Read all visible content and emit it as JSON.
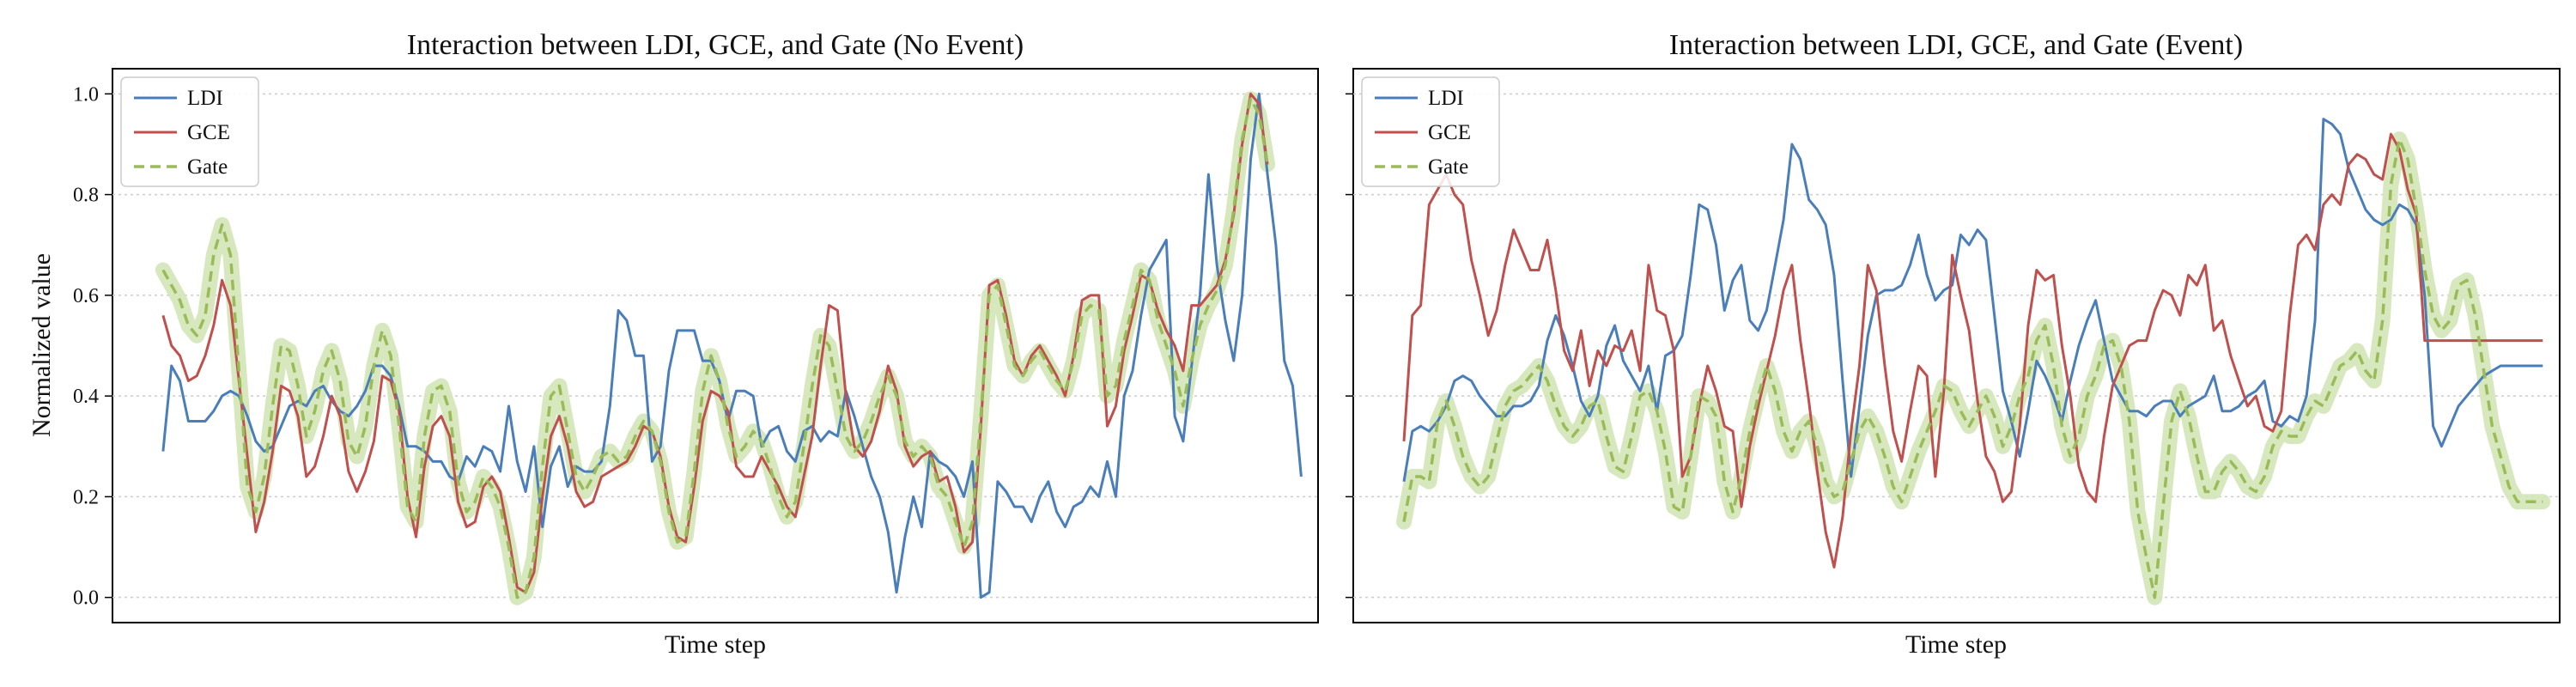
{
  "colors": {
    "ldi": "#4a7ebb",
    "gce": "#c0504d",
    "gate": "#9bbb59",
    "gate_band": "#d3e6b8",
    "grid": "#cccccc"
  },
  "chart_data": [
    {
      "type": "line",
      "title": "Interaction between LDI, GCE, and Gate (No Event)",
      "xlabel": "Time step",
      "ylabel": "Normalized value",
      "ylim": [
        -0.05,
        1.05
      ],
      "xlim": [
        -6,
        137
      ],
      "yticks": [
        "0.0",
        "0.2",
        "0.4",
        "0.6",
        "0.8",
        "1.0"
      ],
      "grid": "y-dotted",
      "legend": "top-left",
      "series": [
        {
          "name": "LDI",
          "values": [
            0.29,
            0.46,
            0.43,
            0.35,
            0.35,
            0.35,
            0.37,
            0.4,
            0.41,
            0.4,
            0.36,
            0.31,
            0.29,
            0.3,
            0.34,
            0.38,
            0.39,
            0.38,
            0.41,
            0.42,
            0.39,
            0.37,
            0.36,
            0.38,
            0.41,
            0.46,
            0.46,
            0.44,
            0.38,
            0.3,
            0.3,
            0.29,
            0.27,
            0.27,
            0.24,
            0.23,
            0.28,
            0.26,
            0.3,
            0.29,
            0.25,
            0.38,
            0.27,
            0.21,
            0.3,
            0.14,
            0.26,
            0.3,
            0.22,
            0.26,
            0.25,
            0.25,
            0.27,
            0.38,
            0.57,
            0.55,
            0.48,
            0.48,
            0.27,
            0.3,
            0.45,
            0.53,
            0.53,
            0.53,
            0.47,
            0.47,
            0.43,
            0.35,
            0.41,
            0.41,
            0.4,
            0.3,
            0.33,
            0.34,
            0.29,
            0.27,
            0.33,
            0.34,
            0.31,
            0.33,
            0.32,
            0.41,
            0.36,
            0.3,
            0.24,
            0.2,
            0.13,
            0.01,
            0.12,
            0.2,
            0.14,
            0.29,
            0.27,
            0.26,
            0.24,
            0.2,
            0.27,
            0.0,
            0.01,
            0.23,
            0.21,
            0.18,
            0.18,
            0.15,
            0.2,
            0.23,
            0.17,
            0.14,
            0.18,
            0.19,
            0.22,
            0.2,
            0.27,
            0.2,
            0.4,
            0.45,
            0.56,
            0.65,
            0.68,
            0.71,
            0.36,
            0.31,
            0.46,
            0.6,
            0.84,
            0.66,
            0.55,
            0.47,
            0.6,
            0.87,
            1.0,
            0.84,
            0.7,
            0.47,
            0.42,
            0.24
          ]
        },
        {
          "name": "GCE",
          "values": [
            0.56,
            0.5,
            0.48,
            0.43,
            0.44,
            0.48,
            0.54,
            0.63,
            0.58,
            0.43,
            0.28,
            0.13,
            0.19,
            0.29,
            0.42,
            0.41,
            0.36,
            0.24,
            0.26,
            0.32,
            0.4,
            0.36,
            0.25,
            0.21,
            0.25,
            0.31,
            0.44,
            0.43,
            0.37,
            0.2,
            0.12,
            0.26,
            0.34,
            0.36,
            0.32,
            0.19,
            0.14,
            0.15,
            0.22,
            0.24,
            0.21,
            0.12,
            0.02,
            0.01,
            0.05,
            0.2,
            0.32,
            0.36,
            0.3,
            0.21,
            0.18,
            0.19,
            0.24,
            0.25,
            0.26,
            0.27,
            0.3,
            0.34,
            0.33,
            0.28,
            0.18,
            0.12,
            0.11,
            0.22,
            0.35,
            0.41,
            0.4,
            0.37,
            0.26,
            0.24,
            0.24,
            0.28,
            0.25,
            0.22,
            0.18,
            0.16,
            0.24,
            0.32,
            0.46,
            0.58,
            0.57,
            0.4,
            0.3,
            0.28,
            0.31,
            0.37,
            0.46,
            0.41,
            0.3,
            0.26,
            0.28,
            0.29,
            0.23,
            0.24,
            0.18,
            0.09,
            0.11,
            0.34,
            0.62,
            0.63,
            0.56,
            0.47,
            0.44,
            0.48,
            0.5,
            0.47,
            0.44,
            0.4,
            0.48,
            0.59,
            0.6,
            0.6,
            0.34,
            0.38,
            0.49,
            0.56,
            0.64,
            0.63,
            0.57,
            0.53,
            0.5,
            0.45,
            0.58,
            0.58,
            0.6,
            0.62,
            0.67,
            0.76,
            0.9,
            1.0,
            0.98,
            0.86
          ]
        },
        {
          "name": "Gate",
          "values": [
            0.65,
            0.62,
            0.59,
            0.54,
            0.52,
            0.56,
            0.68,
            0.74,
            0.68,
            0.45,
            0.22,
            0.17,
            0.24,
            0.38,
            0.5,
            0.49,
            0.42,
            0.32,
            0.37,
            0.45,
            0.49,
            0.43,
            0.31,
            0.28,
            0.34,
            0.46,
            0.53,
            0.48,
            0.34,
            0.18,
            0.15,
            0.32,
            0.41,
            0.42,
            0.37,
            0.23,
            0.17,
            0.19,
            0.24,
            0.22,
            0.18,
            0.1,
            0.0,
            0.01,
            0.08,
            0.26,
            0.4,
            0.42,
            0.33,
            0.24,
            0.21,
            0.24,
            0.28,
            0.29,
            0.27,
            0.28,
            0.32,
            0.35,
            0.33,
            0.27,
            0.17,
            0.11,
            0.12,
            0.25,
            0.41,
            0.48,
            0.43,
            0.34,
            0.28,
            0.3,
            0.33,
            0.31,
            0.26,
            0.2,
            0.16,
            0.19,
            0.3,
            0.42,
            0.52,
            0.5,
            0.41,
            0.32,
            0.29,
            0.31,
            0.35,
            0.4,
            0.44,
            0.4,
            0.31,
            0.28,
            0.3,
            0.28,
            0.22,
            0.2,
            0.15,
            0.1,
            0.15,
            0.36,
            0.6,
            0.62,
            0.54,
            0.46,
            0.44,
            0.47,
            0.49,
            0.46,
            0.43,
            0.41,
            0.47,
            0.56,
            0.58,
            0.57,
            0.4,
            0.42,
            0.51,
            0.58,
            0.65,
            0.63,
            0.55,
            0.5,
            0.45,
            0.38,
            0.47,
            0.54,
            0.58,
            0.61,
            0.66,
            0.77,
            0.91,
            0.99,
            0.96,
            0.86
          ]
        }
      ]
    },
    {
      "type": "line",
      "title": "Interaction between LDI, GCE, and Gate (Event)",
      "xlabel": "Time step",
      "ylabel": "",
      "ylim": [
        -0.05,
        1.05
      ],
      "xlim": [
        -6,
        137
      ],
      "grid": "y-dotted",
      "legend": "top-left",
      "series": [
        {
          "name": "LDI",
          "values": [
            0.23,
            0.33,
            0.34,
            0.33,
            0.35,
            0.38,
            0.43,
            0.44,
            0.43,
            0.4,
            0.38,
            0.36,
            0.36,
            0.38,
            0.38,
            0.39,
            0.42,
            0.51,
            0.56,
            0.52,
            0.46,
            0.39,
            0.36,
            0.4,
            0.5,
            0.54,
            0.47,
            0.44,
            0.41,
            0.46,
            0.37,
            0.48,
            0.49,
            0.52,
            0.64,
            0.78,
            0.77,
            0.7,
            0.57,
            0.63,
            0.66,
            0.55,
            0.53,
            0.57,
            0.66,
            0.75,
            0.9,
            0.87,
            0.79,
            0.77,
            0.74,
            0.64,
            0.43,
            0.24,
            0.38,
            0.52,
            0.6,
            0.61,
            0.61,
            0.62,
            0.66,
            0.72,
            0.64,
            0.59,
            0.61,
            0.62,
            0.72,
            0.7,
            0.73,
            0.71,
            0.56,
            0.41,
            0.35,
            0.28,
            0.37,
            0.47,
            0.44,
            0.4,
            0.35,
            0.43,
            0.5,
            0.55,
            0.59,
            0.51,
            0.43,
            0.4,
            0.37,
            0.37,
            0.36,
            0.38,
            0.39,
            0.39,
            0.36,
            0.38,
            0.39,
            0.4,
            0.44,
            0.37,
            0.37,
            0.38,
            0.4,
            0.41,
            0.43,
            0.35,
            0.34,
            0.36,
            0.35,
            0.4,
            0.55,
            0.95,
            0.94,
            0.92,
            0.85,
            0.81,
            0.77,
            0.75,
            0.74,
            0.75,
            0.78,
            0.77,
            0.74,
            0.6,
            0.34,
            0.3,
            0.34,
            0.38,
            0.4,
            0.42,
            0.44,
            0.45,
            0.46,
            0.46,
            0.46,
            0.46,
            0.46,
            0.46
          ]
        },
        {
          "name": "GCE",
          "values": [
            0.31,
            0.56,
            0.58,
            0.78,
            0.81,
            0.84,
            0.8,
            0.78,
            0.67,
            0.6,
            0.52,
            0.57,
            0.66,
            0.73,
            0.69,
            0.65,
            0.65,
            0.71,
            0.61,
            0.49,
            0.45,
            0.53,
            0.42,
            0.49,
            0.46,
            0.5,
            0.49,
            0.53,
            0.45,
            0.66,
            0.57,
            0.56,
            0.49,
            0.24,
            0.28,
            0.38,
            0.46,
            0.41,
            0.34,
            0.33,
            0.18,
            0.3,
            0.38,
            0.45,
            0.52,
            0.61,
            0.66,
            0.51,
            0.39,
            0.25,
            0.13,
            0.06,
            0.16,
            0.33,
            0.46,
            0.66,
            0.61,
            0.46,
            0.33,
            0.27,
            0.37,
            0.46,
            0.44,
            0.24,
            0.41,
            0.68,
            0.6,
            0.53,
            0.39,
            0.28,
            0.25,
            0.19,
            0.21,
            0.34,
            0.54,
            0.65,
            0.63,
            0.64,
            0.5,
            0.4,
            0.26,
            0.21,
            0.19,
            0.32,
            0.42,
            0.46,
            0.5,
            0.51,
            0.51,
            0.57,
            0.61,
            0.6,
            0.56,
            0.64,
            0.62,
            0.66,
            0.53,
            0.55,
            0.48,
            0.43,
            0.38,
            0.4,
            0.34,
            0.33,
            0.37,
            0.56,
            0.7,
            0.72,
            0.69,
            0.78,
            0.8,
            0.78,
            0.86,
            0.88,
            0.87,
            0.84,
            0.83,
            0.92,
            0.89,
            0.81,
            0.76,
            0.51,
            0.51,
            0.51,
            0.51,
            0.51,
            0.51,
            0.51,
            0.51,
            0.51,
            0.51,
            0.51,
            0.51,
            0.51,
            0.51,
            0.51
          ]
        },
        {
          "name": "Gate",
          "values": [
            0.15,
            0.24,
            0.24,
            0.23,
            0.35,
            0.39,
            0.34,
            0.28,
            0.24,
            0.22,
            0.24,
            0.31,
            0.38,
            0.41,
            0.42,
            0.44,
            0.46,
            0.43,
            0.38,
            0.34,
            0.32,
            0.34,
            0.38,
            0.39,
            0.32,
            0.26,
            0.25,
            0.32,
            0.4,
            0.41,
            0.37,
            0.29,
            0.18,
            0.17,
            0.28,
            0.4,
            0.39,
            0.36,
            0.23,
            0.17,
            0.24,
            0.33,
            0.4,
            0.46,
            0.41,
            0.33,
            0.29,
            0.33,
            0.35,
            0.3,
            0.23,
            0.2,
            0.21,
            0.27,
            0.33,
            0.36,
            0.33,
            0.28,
            0.22,
            0.19,
            0.24,
            0.29,
            0.33,
            0.37,
            0.42,
            0.41,
            0.37,
            0.34,
            0.37,
            0.4,
            0.36,
            0.3,
            0.34,
            0.4,
            0.44,
            0.51,
            0.54,
            0.46,
            0.34,
            0.28,
            0.32,
            0.4,
            0.44,
            0.5,
            0.51,
            0.46,
            0.35,
            0.17,
            0.08,
            0.0,
            0.18,
            0.35,
            0.41,
            0.36,
            0.28,
            0.21,
            0.21,
            0.25,
            0.27,
            0.25,
            0.22,
            0.21,
            0.24,
            0.3,
            0.33,
            0.32,
            0.32,
            0.36,
            0.39,
            0.38,
            0.42,
            0.46,
            0.47,
            0.49,
            0.45,
            0.43,
            0.55,
            0.82,
            0.91,
            0.87,
            0.77,
            0.65,
            0.56,
            0.53,
            0.55,
            0.62,
            0.63,
            0.56,
            0.45,
            0.34,
            0.28,
            0.22,
            0.19,
            0.19,
            0.19,
            0.19
          ]
        }
      ]
    }
  ]
}
